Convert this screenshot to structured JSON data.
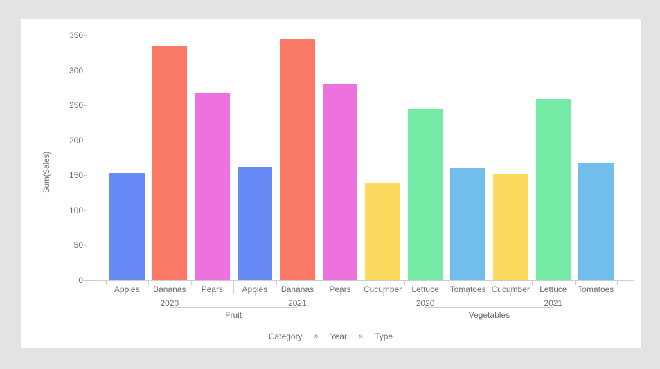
{
  "colors": {
    "page_background": "#e3e3e3",
    "card_background": "#ffffff",
    "axis_line": "#c9cdd8",
    "label_text": "#6e6e6e",
    "tick_text": "#6b6b6b"
  },
  "chart_data": {
    "type": "bar",
    "title": "",
    "ylabel": "Sum(Sales)",
    "xlabel": "",
    "ylim": [
      0,
      350
    ],
    "ytick_step": 50,
    "yticks": [
      0,
      50,
      100,
      150,
      200,
      250,
      300,
      350
    ],
    "grid": false,
    "legend": "none",
    "axis_hierarchy": [
      "Category",
      "Year",
      "Type"
    ],
    "hierarchy_separator": "»",
    "type_colors": {
      "Apples": "#6689f5",
      "Bananas": "#fa7866",
      "Pears": "#ed72de",
      "Cucumber": "#fdda5e",
      "Lettuce": "#75eaa4",
      "Tomatoes": "#71beea"
    },
    "groups": [
      {
        "category": "Fruit",
        "years": [
          {
            "year": "2020",
            "bars": [
              {
                "type": "Apples",
                "value": 153,
                "color": "#6689f5"
              },
              {
                "type": "Bananas",
                "value": 336,
                "color": "#fa7866"
              },
              {
                "type": "Pears",
                "value": 267,
                "color": "#ed72de"
              }
            ]
          },
          {
            "year": "2021",
            "bars": [
              {
                "type": "Apples",
                "value": 162,
                "color": "#6689f5"
              },
              {
                "type": "Bananas",
                "value": 345,
                "color": "#fa7866"
              },
              {
                "type": "Pears",
                "value": 280,
                "color": "#ed72de"
              }
            ]
          }
        ]
      },
      {
        "category": "Vegetables",
        "years": [
          {
            "year": "2020",
            "bars": [
              {
                "type": "Cucumber",
                "value": 140,
                "color": "#fdda5e"
              },
              {
                "type": "Lettuce",
                "value": 245,
                "color": "#75eaa4"
              },
              {
                "type": "Tomatoes",
                "value": 161,
                "color": "#71beea"
              }
            ]
          },
          {
            "year": "2021",
            "bars": [
              {
                "type": "Cucumber",
                "value": 151,
                "color": "#fdda5e"
              },
              {
                "type": "Lettuce",
                "value": 259,
                "color": "#75eaa4"
              },
              {
                "type": "Tomatoes",
                "value": 168,
                "color": "#71beea"
              }
            ]
          }
        ]
      }
    ]
  }
}
